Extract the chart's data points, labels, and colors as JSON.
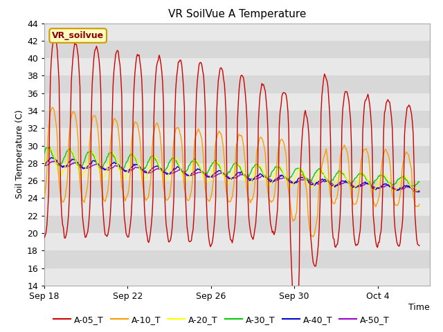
{
  "title": "VR SoilVue A Temperature",
  "xlabel": "Time",
  "ylabel": "Soil Temperature (C)",
  "ylim": [
    14,
    44
  ],
  "yticks": [
    14,
    16,
    18,
    20,
    22,
    24,
    26,
    28,
    30,
    32,
    34,
    36,
    38,
    40,
    42,
    44
  ],
  "bg_color": "#ffffff",
  "plot_bg_light": "#e8e8e8",
  "plot_bg_dark": "#d8d8d8",
  "legend_label": "VR_soilvue",
  "series_colors": {
    "A-05_T": "#cc0000",
    "A-10_T": "#ff9900",
    "A-20_T": "#ffff00",
    "A-30_T": "#00cc00",
    "A-40_T": "#0000cc",
    "A-50_T": "#9900cc"
  },
  "xtick_labels": [
    "Sep 18",
    "Sep 22",
    "Sep 26",
    "Sep 30",
    "Oct 4"
  ],
  "xtick_positions": [
    0,
    4,
    8,
    12,
    16
  ],
  "xlim": [
    0,
    18.5
  ],
  "figsize": [
    6.4,
    4.8
  ],
  "dpi": 100
}
